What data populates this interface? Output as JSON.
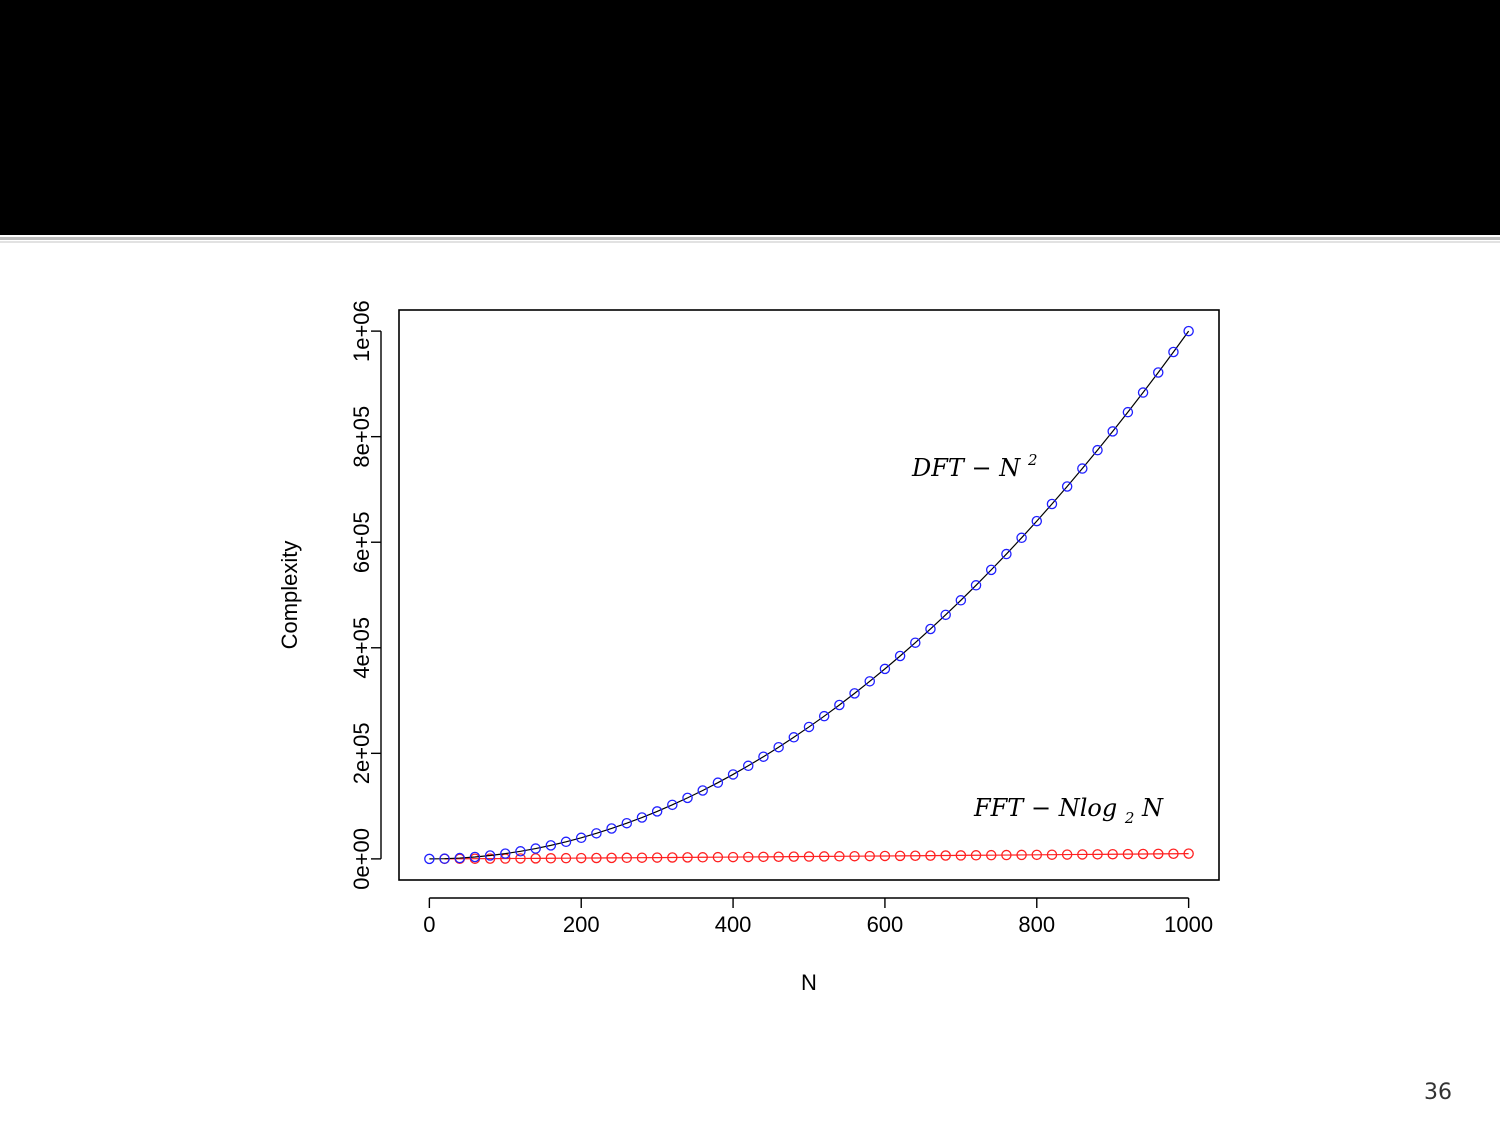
{
  "slide": {
    "page_number": "36",
    "background": "#ffffff",
    "title_band_color": "#000000"
  },
  "chart_data": {
    "type": "line",
    "title": "",
    "xlabel": "N",
    "ylabel": "Complexity",
    "xlim": [
      -40,
      1040
    ],
    "ylim": [
      -40000,
      1040000
    ],
    "x_ticks": [
      0,
      200,
      400,
      600,
      800,
      1000
    ],
    "x_tick_labels": [
      "0",
      "200",
      "400",
      "600",
      "800",
      "1000"
    ],
    "y_ticks": [
      0,
      200000,
      400000,
      600000,
      800000,
      1000000
    ],
    "y_tick_labels": [
      "0e+00",
      "2e+05",
      "4e+05",
      "6e+05",
      "8e+05",
      "1e+06"
    ],
    "grid": false,
    "legend": "none",
    "series": [
      {
        "label": "DFT",
        "exponent": "2",
        "formula": "N^2",
        "marker": "circle",
        "marker_color": "#2020ff",
        "line_color": "#000000",
        "x": [
          0,
          20,
          40,
          60,
          80,
          100,
          120,
          140,
          160,
          180,
          200,
          220,
          240,
          260,
          280,
          300,
          320,
          340,
          360,
          380,
          400,
          420,
          440,
          460,
          480,
          500,
          520,
          540,
          560,
          580,
          600,
          620,
          640,
          660,
          680,
          700,
          720,
          740,
          760,
          780,
          800,
          820,
          840,
          860,
          880,
          900,
          920,
          940,
          960,
          980,
          1000
        ],
        "y": [
          0,
          400,
          1600,
          3600,
          6400,
          10000,
          14400,
          19600,
          25600,
          32400,
          40000,
          48400,
          57600,
          67600,
          78400,
          90000,
          102400,
          115600,
          129600,
          144400,
          160000,
          176400,
          193600,
          211600,
          230400,
          250000,
          270400,
          291600,
          313600,
          336400,
          360000,
          384400,
          409600,
          435600,
          462400,
          490000,
          518400,
          547600,
          577600,
          608400,
          640000,
          672400,
          705600,
          739600,
          774400,
          810000,
          846400,
          883600,
          921600,
          960400,
          1000000
        ]
      },
      {
        "label": "FFT",
        "part1": "Nlog",
        "subscript": "2",
        "part2": "N",
        "formula": "N log2 N",
        "marker": "circle",
        "marker_color": "#ff2020",
        "line_color": "#ff2020",
        "x": [
          20,
          40,
          60,
          80,
          100,
          120,
          140,
          160,
          180,
          200,
          220,
          240,
          260,
          280,
          300,
          320,
          340,
          360,
          380,
          400,
          420,
          440,
          460,
          480,
          500,
          520,
          540,
          560,
          580,
          600,
          620,
          640,
          660,
          680,
          700,
          720,
          740,
          760,
          780,
          800,
          820,
          840,
          860,
          880,
          900,
          920,
          940,
          960,
          980,
          1000
        ],
        "y": [
          86,
          213,
          354,
          506,
          664,
          829,
          998,
          1171,
          1349,
          1529,
          1712,
          1898,
          2085,
          2276,
          2469,
          2663,
          2859,
          3058,
          3257,
          3458,
          3661,
          3865,
          4070,
          4276,
          4483,
          4692,
          4901,
          5112,
          5323,
          5537,
          5750,
          5965,
          6180,
          6397,
          6614,
          6832,
          7051,
          7271,
          7492,
          7715,
          7937,
          8160,
          8384,
          8609,
          8834,
          9061,
          9288,
          9515,
          9743,
          9966
        ]
      }
    ]
  }
}
